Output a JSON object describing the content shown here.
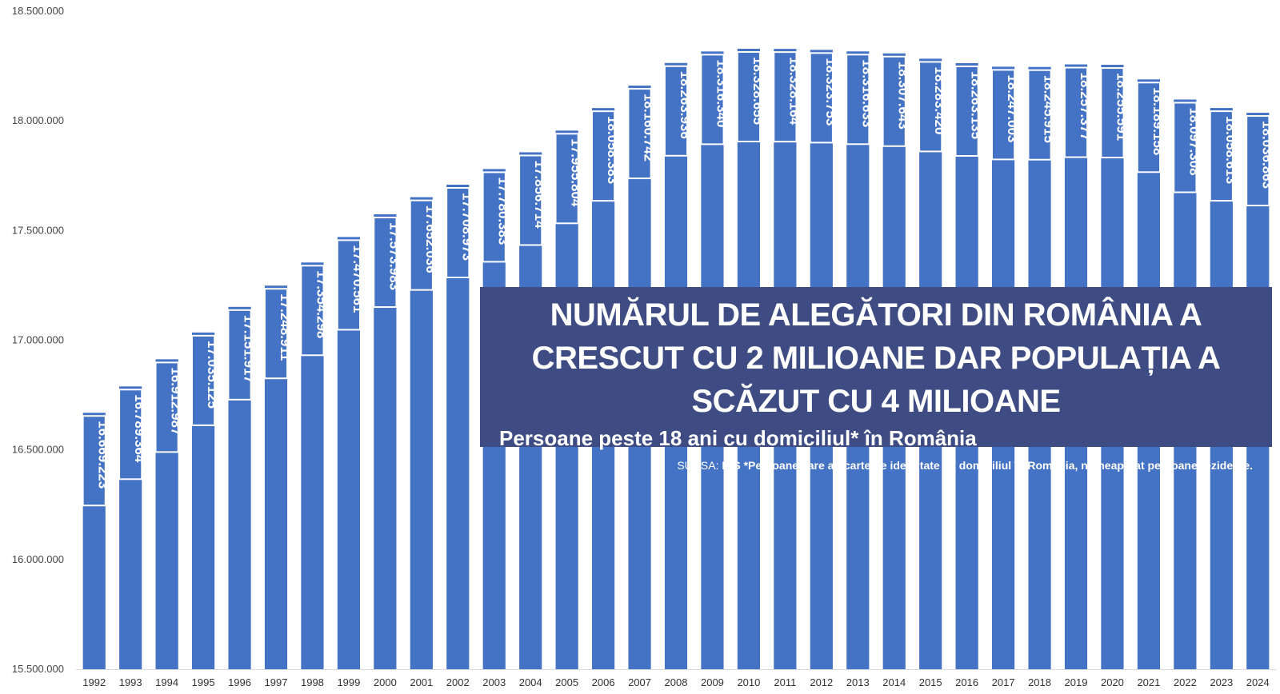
{
  "chart_data": {
    "type": "bar",
    "title": "NUMĂRUL DE ALEGĂTORI DIN ROMÂNIA A CRESCUT CU 2 MILIOANE DAR  POPULAȚIA A SCĂZUT CU 4 MILIOANE",
    "subtitle": "Persoane peste 18 ani cu domiciliul* în România",
    "source_prefix": "SURSA: ",
    "source_name": "INS",
    "source_note": " *Persoane care au carte de identitate cu domiciliul în România, nu neapărat persoane rezidente.",
    "xlabel": "",
    "ylabel": "",
    "ylim": [
      15500000,
      18500000
    ],
    "y_ticks": [
      15500000,
      16000000,
      16500000,
      17000000,
      17500000,
      18000000,
      18500000
    ],
    "y_tick_labels": [
      "15.500.000",
      "16.000.000",
      "16.500.000",
      "17.000.000",
      "17.500.000",
      "18.000.000",
      "18.500.000"
    ],
    "categories": [
      "1992",
      "1993",
      "1994",
      "1995",
      "1996",
      "1997",
      "1998",
      "1999",
      "2000",
      "2001",
      "2002",
      "2003",
      "2004",
      "2005",
      "2006",
      "2007",
      "2008",
      "2009",
      "2010",
      "2011",
      "2012",
      "2013",
      "2014",
      "2015",
      "2016",
      "2017",
      "2018",
      "2019",
      "2020",
      "2021",
      "2022",
      "2023",
      "2024"
    ],
    "values": [
      16669223,
      16789364,
      16912987,
      17035125,
      17151917,
      17248911,
      17354298,
      17470561,
      17573983,
      17652036,
      17708973,
      17780383,
      17856714,
      17955804,
      18058383,
      18160742,
      18263936,
      18316340,
      18328655,
      18328164,
      18323753,
      18316633,
      18307643,
      18283420,
      18263135,
      18247003,
      18245915,
      18257377,
      18255591,
      18189158,
      18097308,
      18058613,
      18036863
    ],
    "value_labels": [
      "16.669.223",
      "16.789.364",
      "16.912.987",
      "17.035.125",
      "17.151.917",
      "17.248.911",
      "17.354.298",
      "17.470.561",
      "17.573.983",
      "17.652.036",
      "17.708.973",
      "17.780.383",
      "17.856.714",
      "17.955.804",
      "18.058.383",
      "18.160.742",
      "18.263.936",
      "18.316.340",
      "18.328.655",
      "18.328.164",
      "18.323.753",
      "18.316.633",
      "18.307.643",
      "18.283.420",
      "18.263.135",
      "18.247.003",
      "18.245.915",
      "18.257.377",
      "18.255.591",
      "18.189.158",
      "18.097.308",
      "18.058.613",
      "18.036.863"
    ],
    "grid": false,
    "legend": "none",
    "colors": {
      "bar": "#4472c4",
      "title_box": "#3f4c84",
      "label_text": "#ffffff"
    }
  }
}
